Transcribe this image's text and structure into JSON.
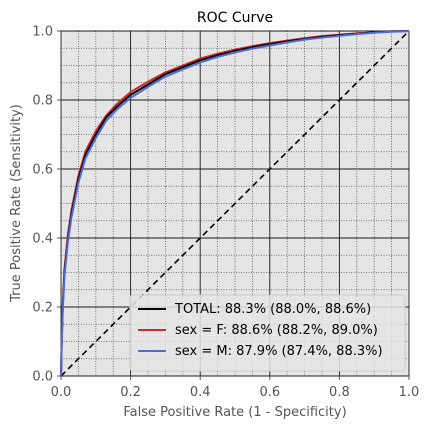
{
  "chart_data": {
    "type": "line",
    "title": "ROC Curve",
    "xlabel": "False Positive Rate (1 - Specificity)",
    "ylabel": "True Positive Rate (Sensitivity)",
    "xlim": [
      0.0,
      1.0
    ],
    "ylim": [
      0.0,
      1.0
    ],
    "xticks": [
      "0.0",
      "0.2",
      "0.4",
      "0.6",
      "0.8",
      "1.0"
    ],
    "yticks": [
      "0.0",
      "0.2",
      "0.4",
      "0.6",
      "0.8",
      "1.0"
    ],
    "grid": "major solid, minor dotted",
    "background": "#e5e5e5",
    "legend_position": "lower-right",
    "series": [
      {
        "name": "TOTAL: 88.3% (88.0%, 88.6%)",
        "color": "#000000",
        "x": [
          0.0,
          0.002,
          0.005,
          0.01,
          0.02,
          0.03,
          0.05,
          0.07,
          0.1,
          0.13,
          0.16,
          0.2,
          0.25,
          0.3,
          0.35,
          0.4,
          0.45,
          0.5,
          0.55,
          0.6,
          0.65,
          0.7,
          0.75,
          0.8,
          0.85,
          0.9,
          0.95,
          1.0
        ],
        "y": [
          0.0,
          0.1,
          0.2,
          0.3,
          0.4,
          0.47,
          0.57,
          0.64,
          0.7,
          0.75,
          0.78,
          0.815,
          0.845,
          0.875,
          0.895,
          0.915,
          0.93,
          0.942,
          0.953,
          0.962,
          0.97,
          0.977,
          0.983,
          0.988,
          0.992,
          0.996,
          0.999,
          1.0
        ]
      },
      {
        "name": "sex = F: 88.6% (88.2%, 89.0%)",
        "color": "#d62728",
        "x": [
          0.0,
          0.002,
          0.005,
          0.01,
          0.02,
          0.03,
          0.05,
          0.07,
          0.1,
          0.13,
          0.16,
          0.2,
          0.25,
          0.3,
          0.35,
          0.4,
          0.45,
          0.5,
          0.55,
          0.6,
          0.65,
          0.7,
          0.75,
          0.8,
          0.85,
          0.9,
          0.95,
          1.0
        ],
        "y": [
          0.0,
          0.1,
          0.21,
          0.31,
          0.41,
          0.48,
          0.58,
          0.65,
          0.71,
          0.755,
          0.788,
          0.823,
          0.853,
          0.88,
          0.9,
          0.92,
          0.934,
          0.946,
          0.956,
          0.965,
          0.972,
          0.979,
          0.985,
          0.989,
          0.993,
          0.996,
          0.999,
          1.0
        ]
      },
      {
        "name": "sex = M: 87.9% (87.4%, 88.3%)",
        "color": "#4f6bd6",
        "x": [
          0.0,
          0.002,
          0.005,
          0.01,
          0.02,
          0.03,
          0.05,
          0.07,
          0.1,
          0.13,
          0.16,
          0.2,
          0.25,
          0.3,
          0.35,
          0.4,
          0.45,
          0.5,
          0.55,
          0.6,
          0.65,
          0.7,
          0.75,
          0.8,
          0.85,
          0.9,
          0.95,
          1.0
        ],
        "y": [
          0.0,
          0.09,
          0.19,
          0.29,
          0.39,
          0.46,
          0.56,
          0.63,
          0.69,
          0.74,
          0.772,
          0.806,
          0.838,
          0.868,
          0.889,
          0.909,
          0.925,
          0.938,
          0.949,
          0.958,
          0.967,
          0.975,
          0.981,
          0.986,
          0.991,
          0.995,
          0.998,
          1.0
        ]
      }
    ],
    "reference_line": {
      "x": [
        0,
        1
      ],
      "y": [
        0,
        1
      ],
      "style": "dashed",
      "color": "#000000"
    }
  }
}
